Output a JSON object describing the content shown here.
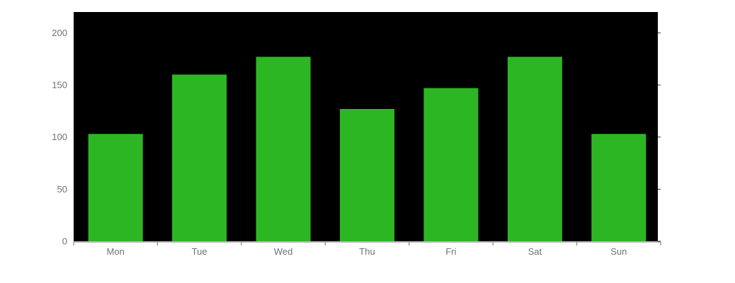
{
  "chart_data": {
    "type": "bar",
    "categories": [
      "Mon",
      "Tue",
      "Wed",
      "Thu",
      "Fri",
      "Sat",
      "Sun"
    ],
    "values": [
      103,
      160,
      177,
      127,
      147,
      177,
      103
    ],
    "ylim": [
      0,
      220
    ],
    "yticks": [
      0,
      50,
      100,
      150,
      200
    ],
    "grid": false,
    "colors": {
      "plot_background": "#000000",
      "bar": "#2db624",
      "axis": "#6e7079",
      "baseline": "#5470c6"
    }
  }
}
